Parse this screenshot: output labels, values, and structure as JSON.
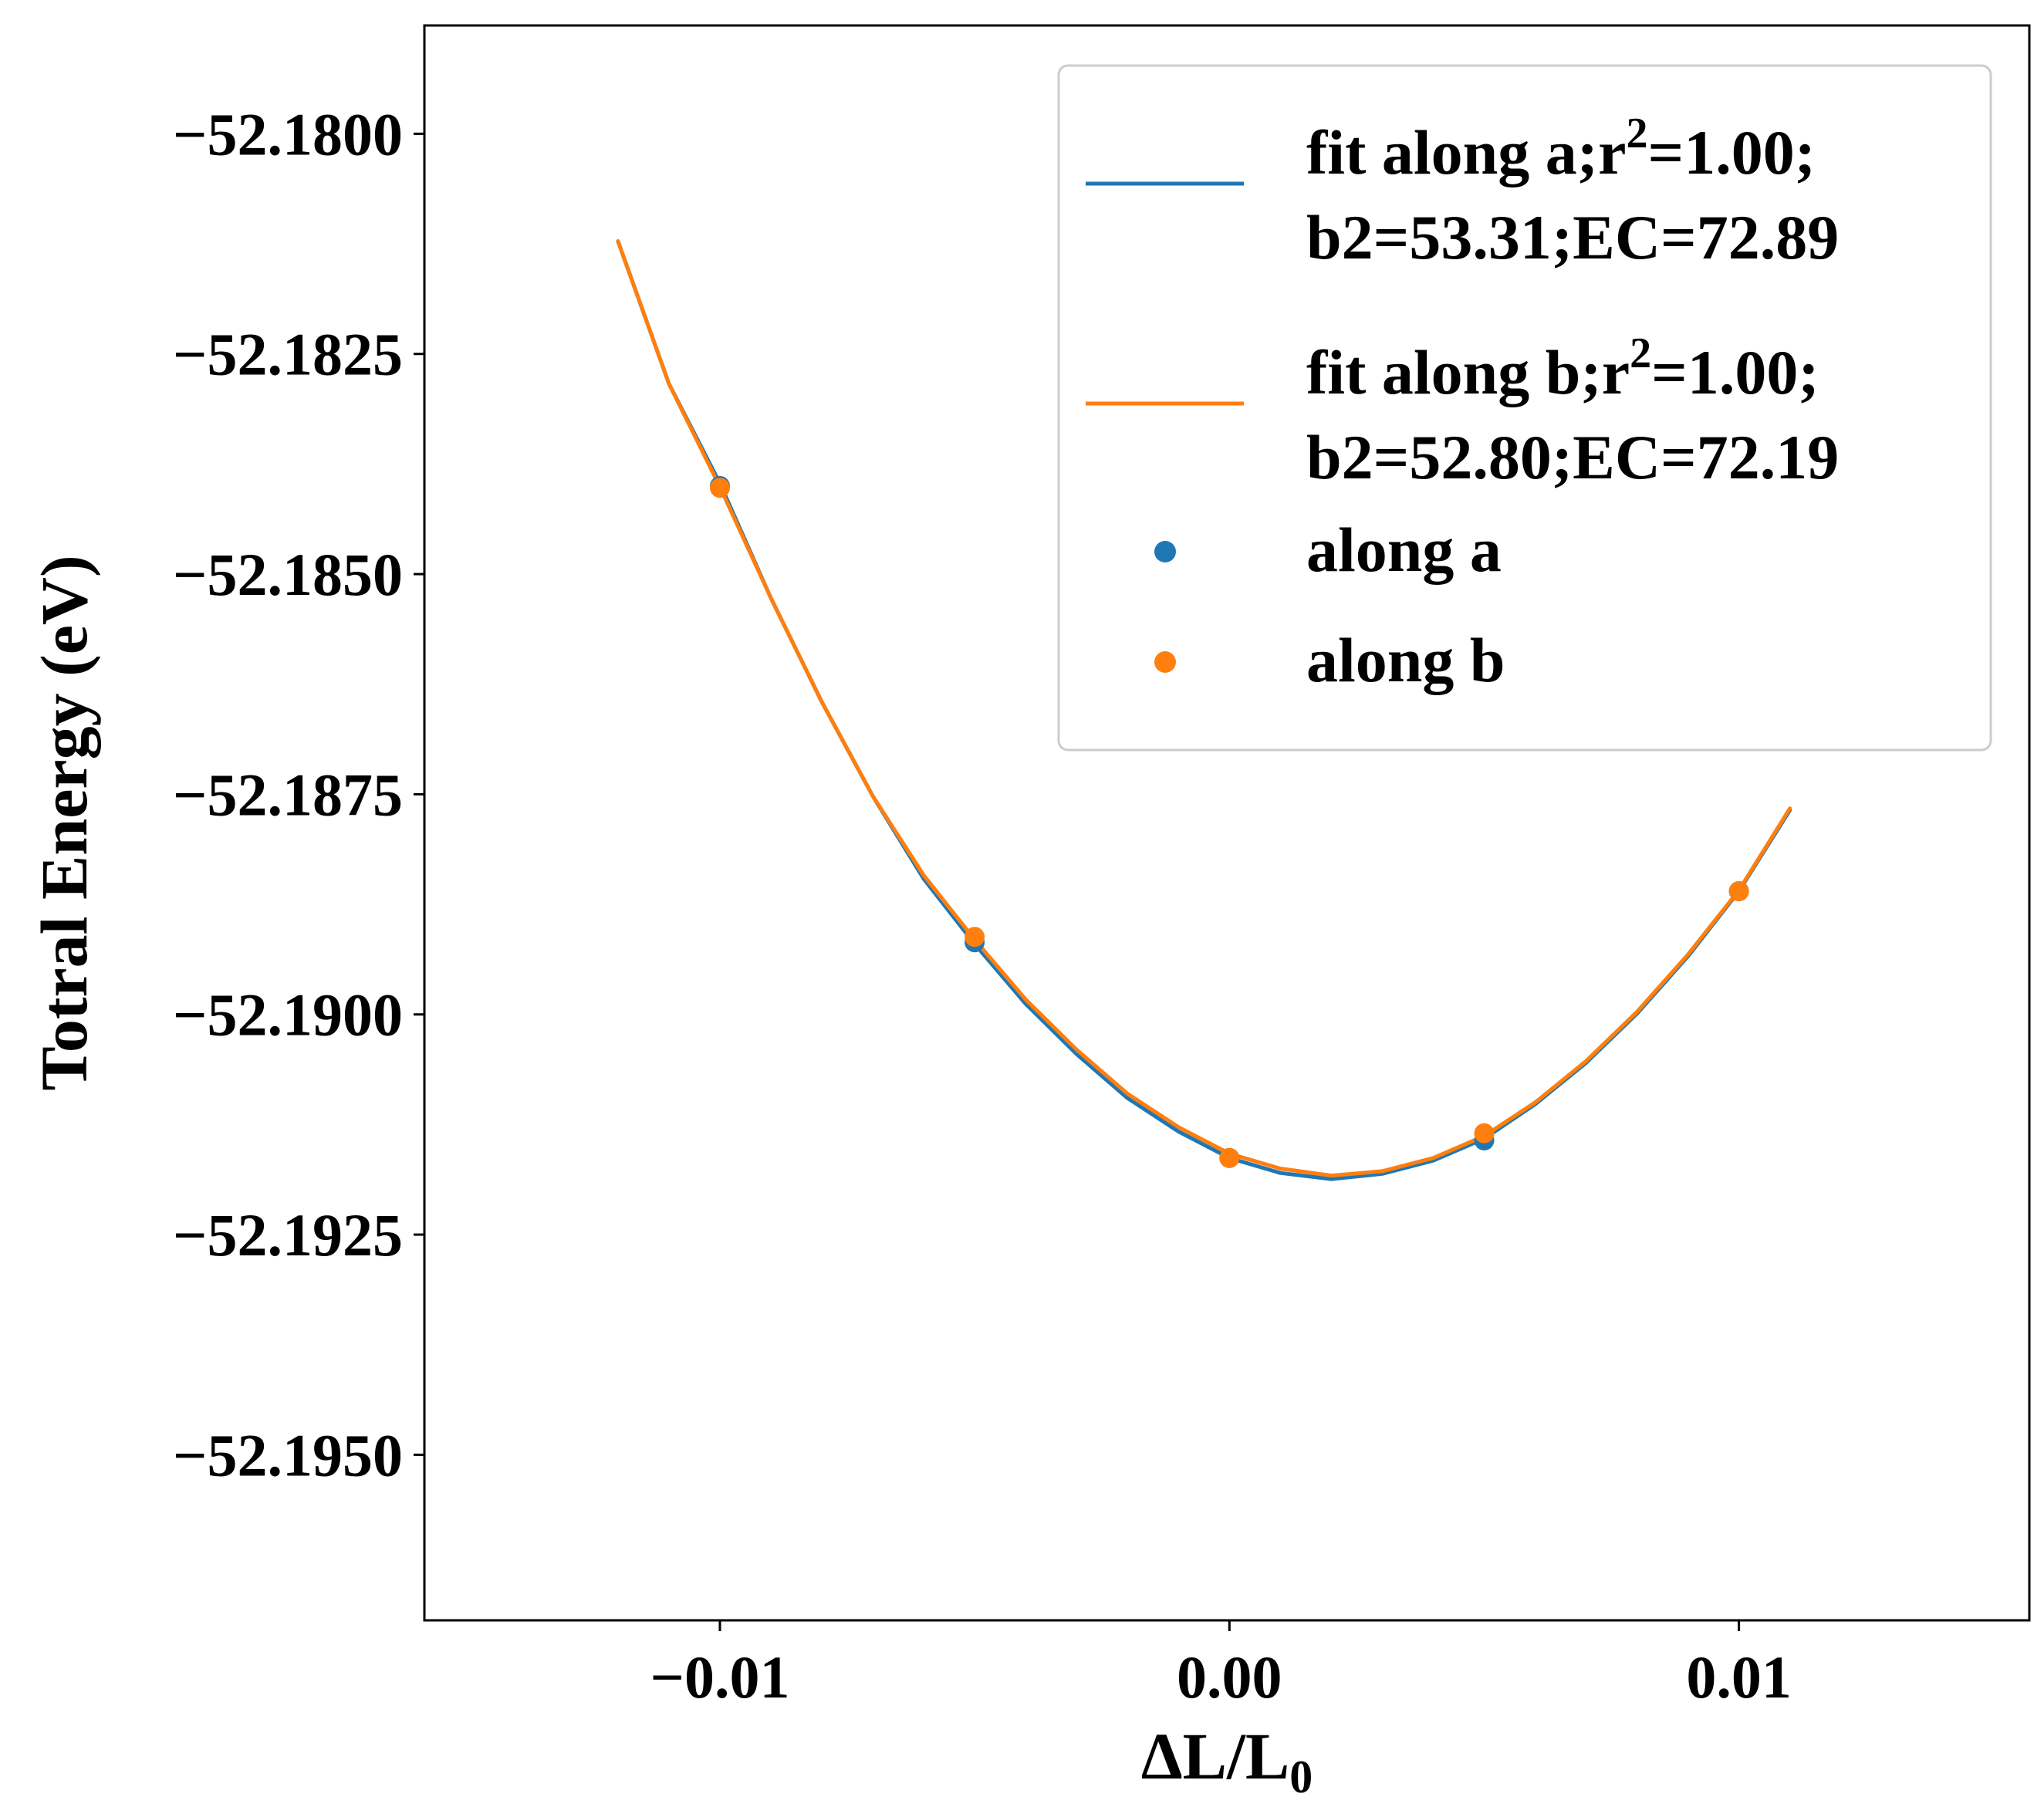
{
  "chart_data": {
    "type": "scatter",
    "xlabel": "ΔL/L",
    "xlabel_subscript": "0",
    "ylabel": "Totral Energy (eV)",
    "xlim": [
      -0.0158,
      0.0157
    ],
    "ylim": [
      -52.19688,
      -52.17877
    ],
    "xticks": [
      -0.01,
      0.0,
      0.01
    ],
    "xtick_labels": [
      "−0.01",
      "0.00",
      "0.01"
    ],
    "yticks": [
      -52.18,
      -52.1825,
      -52.185,
      -52.1875,
      -52.19,
      -52.1925,
      -52.195
    ],
    "ytick_labels": [
      "−52.1800",
      "−52.1825",
      "−52.1850",
      "−52.1875",
      "−52.1900",
      "−52.1925",
      "−52.1950"
    ],
    "grid": false,
    "legend_position": "top-right",
    "series": [
      {
        "name": "fit along a",
        "kind": "line",
        "color": "#1f77b4",
        "legend": {
          "line1_prefix": "fit along a;r",
          "sup": "2",
          "line1_suffix": "=1.00;",
          "line2": "b2=53.31;EC=72.89"
        },
        "x": [
          -0.012,
          -0.011,
          -0.01,
          -0.009,
          -0.008,
          -0.007,
          -0.006,
          -0.005,
          -0.004,
          -0.003,
          -0.002,
          -0.001,
          0.0,
          0.001,
          0.002,
          0.003,
          0.004,
          0.005,
          0.006,
          0.007,
          0.008,
          0.009,
          0.01,
          0.011
        ],
        "y": [
          -52.18122,
          -52.18284,
          -52.18397,
          -52.18527,
          -52.18645,
          -52.18752,
          -52.18846,
          -52.1892,
          -52.18988,
          -52.19045,
          -52.19095,
          -52.19133,
          -52.19163,
          -52.1918,
          -52.19187,
          -52.19181,
          -52.19166,
          -52.19141,
          -52.19102,
          -52.19055,
          -52.18999,
          -52.18934,
          -52.1886,
          -52.18768
        ]
      },
      {
        "name": "fit along b",
        "kind": "line",
        "color": "#ff7f0e",
        "legend": {
          "line1_prefix": "fit along b;r",
          "sup": "2",
          "line1_suffix": "=1.00;",
          "line2": "b2=52.80;EC=72.19"
        },
        "x": [
          -0.012,
          -0.011,
          -0.01,
          -0.009,
          -0.008,
          -0.007,
          -0.006,
          -0.005,
          -0.004,
          -0.003,
          -0.002,
          -0.001,
          0.0,
          0.001,
          0.002,
          0.003,
          0.004,
          0.005,
          0.006,
          0.007,
          0.008,
          0.009,
          0.01,
          0.011
        ],
        "y": [
          -52.18122,
          -52.18284,
          -52.18401,
          -52.18527,
          -52.18645,
          -52.18752,
          -52.18842,
          -52.18915,
          -52.18983,
          -52.1904,
          -52.1909,
          -52.19128,
          -52.19158,
          -52.19175,
          -52.19183,
          -52.19178,
          -52.19163,
          -52.19138,
          -52.191,
          -52.19053,
          -52.18997,
          -52.18932,
          -52.18859,
          -52.18766
        ]
      },
      {
        "name": "along a",
        "kind": "scatter",
        "color": "#1f77b4",
        "x": [
          -0.01,
          -0.005,
          0.0,
          0.005,
          0.01
        ],
        "y": [
          -52.184,
          -52.18918,
          -52.19163,
          -52.19143,
          -52.1886
        ]
      },
      {
        "name": "along b",
        "kind": "scatter",
        "color": "#ff7f0e",
        "x": [
          -0.01,
          -0.005,
          0.0,
          0.005,
          0.01
        ],
        "y": [
          -52.18402,
          -52.18912,
          -52.19163,
          -52.19135,
          -52.1886
        ]
      }
    ]
  }
}
